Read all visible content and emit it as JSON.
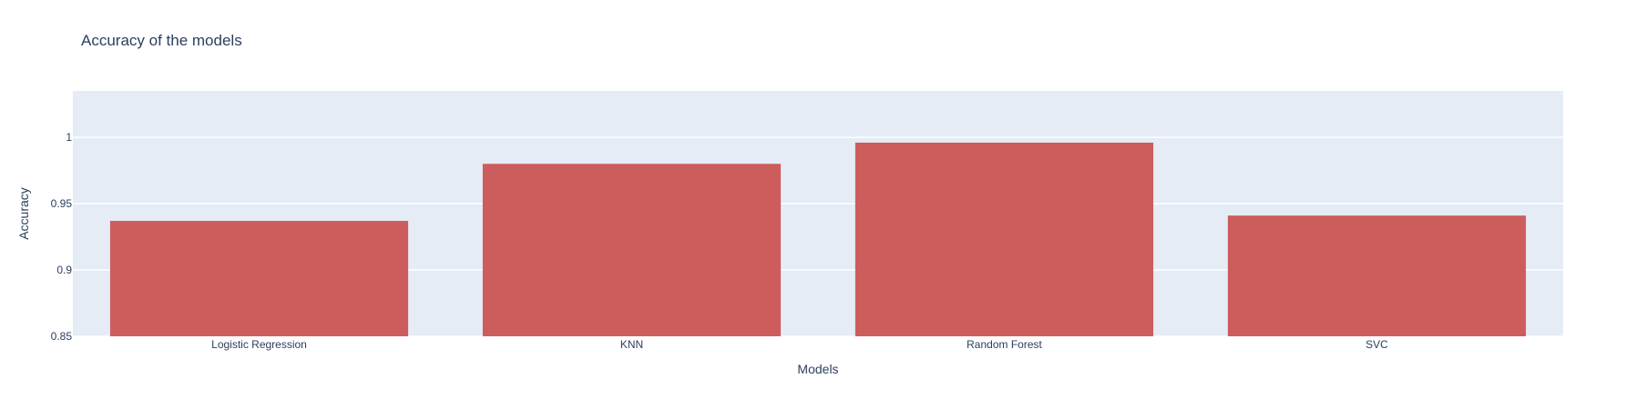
{
  "chart_data": {
    "type": "bar",
    "title": "Accuracy of the models",
    "xlabel": "Models",
    "ylabel": "Accuracy",
    "categories": [
      "Logistic Regression",
      "KNN",
      "Random Forest",
      "SVC"
    ],
    "values": [
      0.937,
      0.98,
      0.996,
      0.941
    ],
    "ylim": [
      0.85,
      1.035
    ],
    "yticks": [
      0.85,
      0.9,
      0.95,
      1
    ],
    "ytick_labels": [
      "0.85",
      "0.9",
      "0.95",
      "1"
    ],
    "grid": true,
    "colors": {
      "bar": "#cd5c5c",
      "plot_bg": "#e5ecf6",
      "grid": "#ffffff",
      "text": "#2a3f5f"
    }
  }
}
